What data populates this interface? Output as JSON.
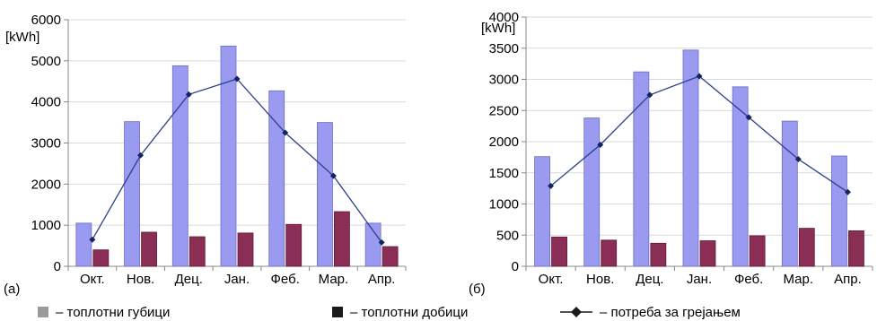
{
  "colors": {
    "losses": "#9a9af0",
    "losses_stroke": "#6c6cc4",
    "gains": "#8a2e55",
    "gains_stroke": "#5e1a38",
    "demand": "#2c3f8c",
    "grid": "#d9d9d9",
    "axis": "#888888"
  },
  "legend": {
    "losses_label": "– топлотни губици",
    "gains_label": "– топлотни добици",
    "demand_label": "– потреба за грејањем"
  },
  "chart_data": [
    {
      "type": "bar",
      "panel_label": "(а)",
      "unit": "[kWh]",
      "categories": [
        "Окт.",
        "Нов.",
        "Дец.",
        "Јан.",
        "Феб.",
        "Мар.",
        "Апр."
      ],
      "ylim": [
        0,
        6000
      ],
      "yticks": [
        0,
        1000,
        2000,
        3000,
        4000,
        5000,
        6000
      ],
      "grid": true,
      "series": [
        {
          "name": "топлотни губици",
          "kind": "bar",
          "values": [
            1050,
            3520,
            4880,
            5360,
            4270,
            3500,
            1050
          ]
        },
        {
          "name": "топлотни добици",
          "kind": "bar",
          "values": [
            400,
            830,
            720,
            810,
            1020,
            1330,
            480
          ]
        },
        {
          "name": "потреба за грејањем",
          "kind": "line",
          "values": [
            650,
            2700,
            4180,
            4560,
            3250,
            2200,
            580
          ]
        }
      ]
    },
    {
      "type": "bar",
      "panel_label": "(б)",
      "unit": "[kWh]",
      "categories": [
        "Окт.",
        "Нов.",
        "Дец.",
        "Јан.",
        "Феб.",
        "Мар.",
        "Апр."
      ],
      "ylim": [
        0,
        4000
      ],
      "yticks": [
        0,
        500,
        1000,
        1500,
        2000,
        2500,
        3000,
        3500,
        4000
      ],
      "grid": true,
      "series": [
        {
          "name": "топлотни губици",
          "kind": "bar",
          "values": [
            1760,
            2380,
            3120,
            3470,
            2880,
            2330,
            1770
          ]
        },
        {
          "name": "топлотни добици",
          "kind": "bar",
          "values": [
            470,
            420,
            370,
            410,
            490,
            610,
            570
          ]
        },
        {
          "name": "потреба за грејањем",
          "kind": "line",
          "values": [
            1290,
            1950,
            2750,
            3050,
            2390,
            1720,
            1190
          ]
        }
      ]
    }
  ]
}
